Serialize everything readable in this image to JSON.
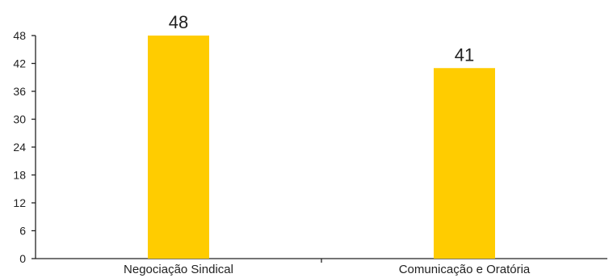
{
  "chart_data": {
    "type": "bar",
    "title": "",
    "xlabel": "",
    "ylabel": "",
    "categories": [
      "Negociação Sindical",
      "Comunicação e Oratória"
    ],
    "values": [
      48,
      41
    ],
    "data_labels": [
      "48",
      "41"
    ],
    "ylim": [
      0,
      48
    ],
    "yticks": [
      0,
      6,
      12,
      18,
      24,
      30,
      36,
      42,
      48
    ],
    "grid": false,
    "legend": "none",
    "bar_color": "#FFCC00",
    "axis_color": "#222222"
  }
}
